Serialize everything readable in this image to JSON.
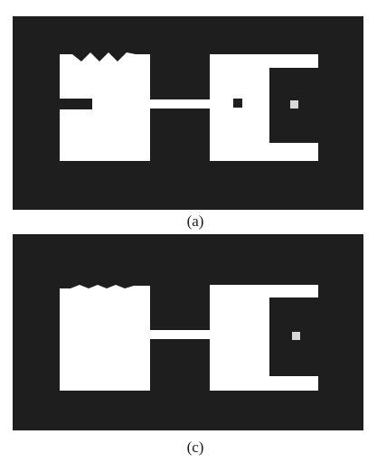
{
  "figure": {
    "panels": [
      {
        "id": "a",
        "caption": "(a)",
        "has_noise_notch_left": true,
        "has_dark_dot_right_block": true,
        "has_light_dot_right_cavity": true
      },
      {
        "id": "c",
        "caption": "(c)",
        "has_noise_notch_left": false,
        "has_dark_dot_right_block": false,
        "has_light_dot_right_cavity": true
      }
    ],
    "colors": {
      "background": "#1e1e1e",
      "foreground": "#ffffff",
      "light_dot": "#d8d8d8"
    }
  }
}
